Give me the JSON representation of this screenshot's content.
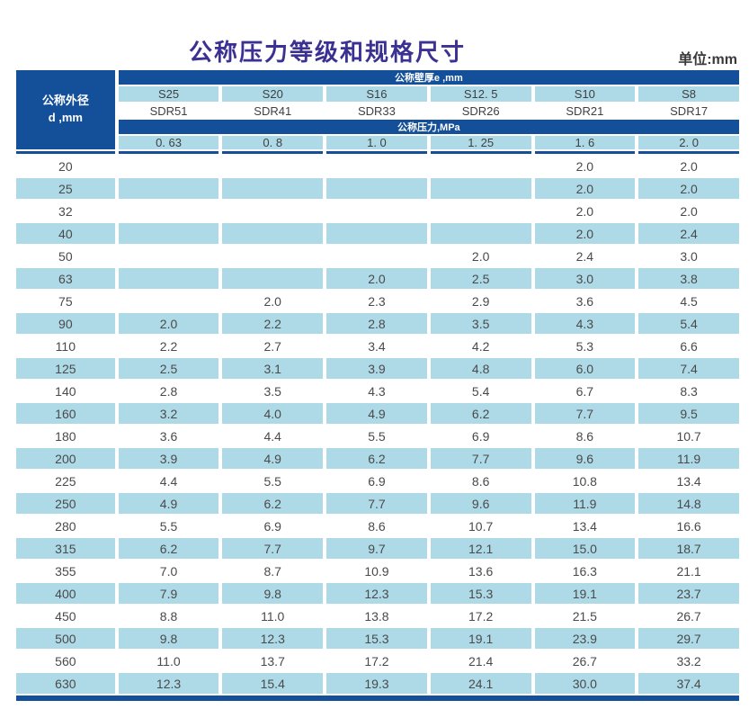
{
  "page": {
    "title": "公称压力等级和规格尺寸",
    "unit_label": "单位:mm"
  },
  "colors": {
    "dark_blue": "#14509a",
    "light_blue": "#aedae8",
    "title_purple": "#3b3193",
    "text_dark": "#4a4a4a"
  },
  "table": {
    "corner_header": {
      "line1": "公称外径",
      "line2": "d ,mm"
    },
    "wall_thickness_header": "公称壁厚e ,mm",
    "pressure_header": "公称压力,MPa",
    "s_series": [
      "S25",
      "S20",
      "S16",
      "S12. 5",
      "S10",
      "S8"
    ],
    "sdr_series": [
      "SDR51",
      "SDR41",
      "SDR33",
      "SDR26",
      "SDR21",
      "SDR17"
    ],
    "pressure_values": [
      "0. 63",
      "0. 8",
      "1. 0",
      "1. 25",
      "1. 6",
      "2. 0"
    ],
    "rows": [
      {
        "d": "20",
        "values": [
          "",
          "",
          "",
          "",
          "2.0",
          "2.0"
        ]
      },
      {
        "d": "25",
        "values": [
          "",
          "",
          "",
          "",
          "2.0",
          "2.0"
        ]
      },
      {
        "d": "32",
        "values": [
          "",
          "",
          "",
          "",
          "2.0",
          "2.0"
        ]
      },
      {
        "d": "40",
        "values": [
          "",
          "",
          "",
          "",
          "2.0",
          "2.4"
        ]
      },
      {
        "d": "50",
        "values": [
          "",
          "",
          "",
          "2.0",
          "2.4",
          "3.0"
        ]
      },
      {
        "d": "63",
        "values": [
          "",
          "",
          "2.0",
          "2.5",
          "3.0",
          "3.8"
        ]
      },
      {
        "d": "75",
        "values": [
          "",
          "2.0",
          "2.3",
          "2.9",
          "3.6",
          "4.5"
        ]
      },
      {
        "d": "90",
        "values": [
          "2.0",
          "2.2",
          "2.8",
          "3.5",
          "4.3",
          "5.4"
        ]
      },
      {
        "d": "110",
        "values": [
          "2.2",
          "2.7",
          "3.4",
          "4.2",
          "5.3",
          "6.6"
        ]
      },
      {
        "d": "125",
        "values": [
          "2.5",
          "3.1",
          "3.9",
          "4.8",
          "6.0",
          "7.4"
        ]
      },
      {
        "d": "140",
        "values": [
          "2.8",
          "3.5",
          "4.3",
          "5.4",
          "6.7",
          "8.3"
        ]
      },
      {
        "d": "160",
        "values": [
          "3.2",
          "4.0",
          "4.9",
          "6.2",
          "7.7",
          "9.5"
        ]
      },
      {
        "d": "180",
        "values": [
          "3.6",
          "4.4",
          "5.5",
          "6.9",
          "8.6",
          "10.7"
        ]
      },
      {
        "d": "200",
        "values": [
          "3.9",
          "4.9",
          "6.2",
          "7.7",
          "9.6",
          "11.9"
        ]
      },
      {
        "d": "225",
        "values": [
          "4.4",
          "5.5",
          "6.9",
          "8.6",
          "10.8",
          "13.4"
        ]
      },
      {
        "d": "250",
        "values": [
          "4.9",
          "6.2",
          "7.7",
          "9.6",
          "11.9",
          "14.8"
        ]
      },
      {
        "d": "280",
        "values": [
          "5.5",
          "6.9",
          "8.6",
          "10.7",
          "13.4",
          "16.6"
        ]
      },
      {
        "d": "315",
        "values": [
          "6.2",
          "7.7",
          "9.7",
          "12.1",
          "15.0",
          "18.7"
        ]
      },
      {
        "d": "355",
        "values": [
          "7.0",
          "8.7",
          "10.9",
          "13.6",
          "16.3",
          "21.1"
        ]
      },
      {
        "d": "400",
        "values": [
          "7.9",
          "9.8",
          "12.3",
          "15.3",
          "19.1",
          "23.7"
        ]
      },
      {
        "d": "450",
        "values": [
          "8.8",
          "11.0",
          "13.8",
          "17.2",
          "21.5",
          "26.7"
        ]
      },
      {
        "d": "500",
        "values": [
          "9.8",
          "12.3",
          "15.3",
          "19.1",
          "23.9",
          "29.7"
        ]
      },
      {
        "d": "560",
        "values": [
          "11.0",
          "13.7",
          "17.2",
          "21.4",
          "26.7",
          "33.2"
        ]
      },
      {
        "d": "630",
        "values": [
          "12.3",
          "15.4",
          "19.3",
          "24.1",
          "30.0",
          "37.4"
        ]
      }
    ]
  }
}
